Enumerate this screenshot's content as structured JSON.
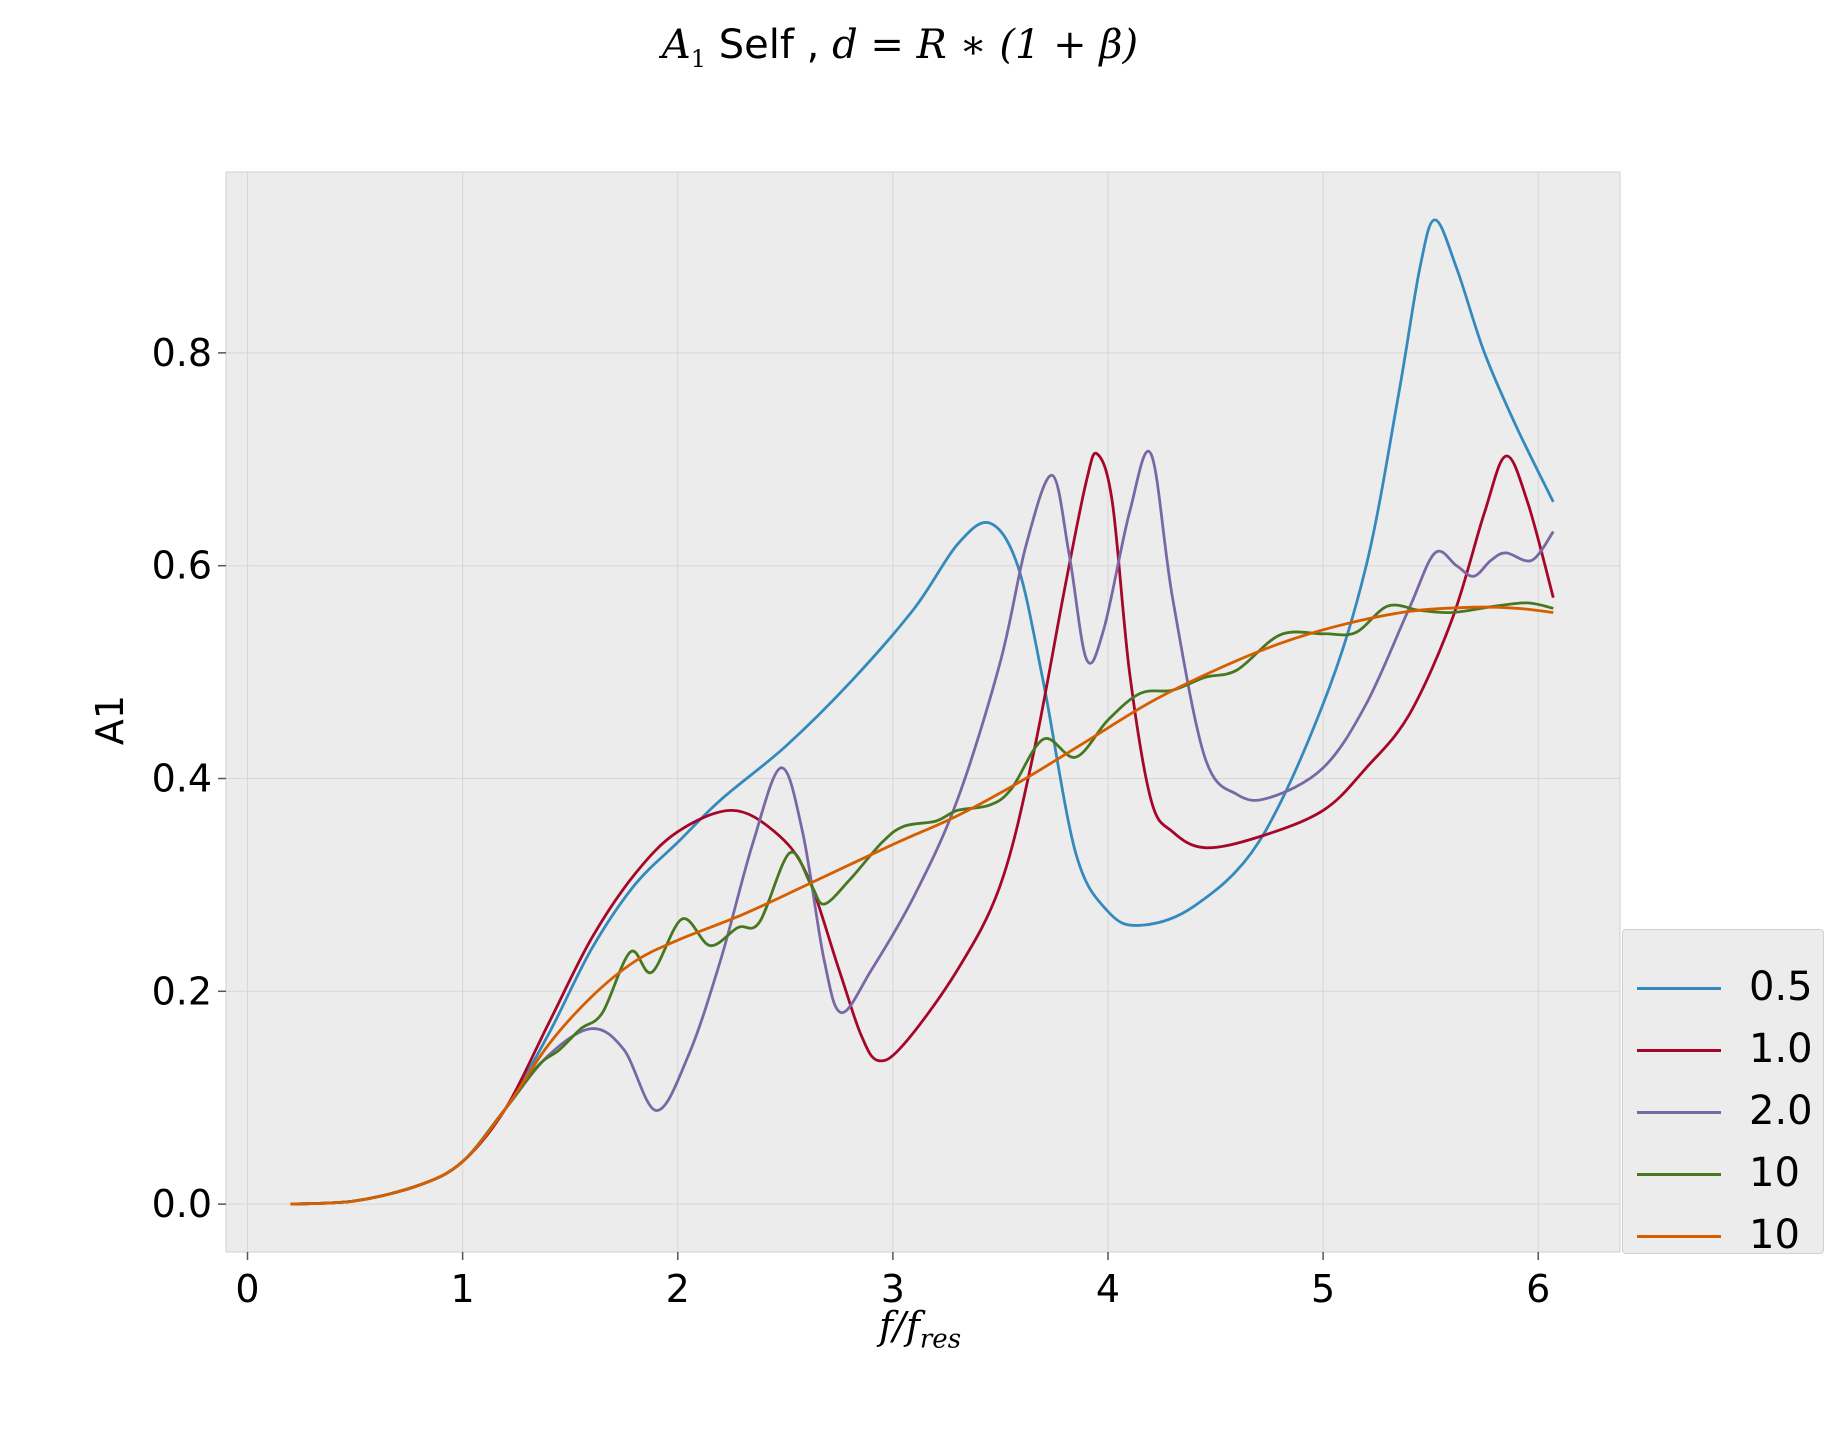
{
  "title": {
    "var_main": "A",
    "var_sub": "1",
    "word": "Self",
    "sep": " , ",
    "formula": "d = R ∗ (1 + β)"
  },
  "xlabel": {
    "main": "f/f",
    "sub": "res"
  },
  "ylabel": "A1",
  "legend": {
    "placement": "lower-right",
    "items": [
      "0.5",
      "1.0",
      "2.0",
      "10",
      "10"
    ]
  },
  "colors": {
    "background": "#ececec",
    "grid": "#d6d6d6"
  },
  "chart_data": {
    "type": "line",
    "title": "A1 Self , d = R * (1 + β)",
    "xlabel": "f/f_res",
    "ylabel": "A1",
    "xlim": [
      -0.1,
      6.38
    ],
    "ylim": [
      -0.045,
      0.97
    ],
    "xticks": [
      0,
      1,
      2,
      3,
      4,
      5,
      6
    ],
    "yticks": [
      0.0,
      0.2,
      0.4,
      0.6,
      0.8
    ],
    "xtick_labels": [
      "0",
      "1",
      "2",
      "3",
      "4",
      "5",
      "6"
    ],
    "ytick_labels": [
      "0.0",
      "0.2",
      "0.4",
      "0.6",
      "0.8"
    ],
    "grid": true,
    "legend_position": "lower-right",
    "series": [
      {
        "name": "0.5",
        "color": "#348abd",
        "points": [
          [
            0.2,
            0.0
          ],
          [
            0.5,
            0.003
          ],
          [
            0.8,
            0.018
          ],
          [
            1.0,
            0.04
          ],
          [
            1.2,
            0.09
          ],
          [
            1.4,
            0.16
          ],
          [
            1.6,
            0.24
          ],
          [
            1.8,
            0.3
          ],
          [
            2.0,
            0.34
          ],
          [
            2.2,
            0.38
          ],
          [
            2.5,
            0.43
          ],
          [
            2.8,
            0.49
          ],
          [
            3.1,
            0.56
          ],
          [
            3.3,
            0.62
          ],
          [
            3.45,
            0.64
          ],
          [
            3.58,
            0.6
          ],
          [
            3.7,
            0.49
          ],
          [
            3.85,
            0.33
          ],
          [
            4.0,
            0.275
          ],
          [
            4.15,
            0.262
          ],
          [
            4.4,
            0.28
          ],
          [
            4.7,
            0.34
          ],
          [
            5.0,
            0.47
          ],
          [
            5.2,
            0.6
          ],
          [
            5.35,
            0.76
          ],
          [
            5.45,
            0.88
          ],
          [
            5.52,
            0.925
          ],
          [
            5.62,
            0.88
          ],
          [
            5.75,
            0.8
          ],
          [
            5.9,
            0.73
          ],
          [
            6.07,
            0.66
          ]
        ]
      },
      {
        "name": "1.0",
        "color": "#a60628",
        "points": [
          [
            0.2,
            0.0
          ],
          [
            0.5,
            0.003
          ],
          [
            0.8,
            0.018
          ],
          [
            1.0,
            0.04
          ],
          [
            1.2,
            0.09
          ],
          [
            1.4,
            0.17
          ],
          [
            1.6,
            0.25
          ],
          [
            1.8,
            0.31
          ],
          [
            2.0,
            0.35
          ],
          [
            2.25,
            0.37
          ],
          [
            2.45,
            0.35
          ],
          [
            2.6,
            0.31
          ],
          [
            2.75,
            0.22
          ],
          [
            2.85,
            0.16
          ],
          [
            2.93,
            0.135
          ],
          [
            3.05,
            0.15
          ],
          [
            3.3,
            0.22
          ],
          [
            3.5,
            0.3
          ],
          [
            3.65,
            0.42
          ],
          [
            3.8,
            0.58
          ],
          [
            3.9,
            0.68
          ],
          [
            3.95,
            0.705
          ],
          [
            4.02,
            0.66
          ],
          [
            4.1,
            0.5
          ],
          [
            4.2,
            0.38
          ],
          [
            4.3,
            0.35
          ],
          [
            4.45,
            0.335
          ],
          [
            4.7,
            0.345
          ],
          [
            5.0,
            0.37
          ],
          [
            5.2,
            0.41
          ],
          [
            5.4,
            0.46
          ],
          [
            5.6,
            0.55
          ],
          [
            5.75,
            0.65
          ],
          [
            5.85,
            0.703
          ],
          [
            5.95,
            0.66
          ],
          [
            6.07,
            0.57
          ]
        ]
      },
      {
        "name": "2.0",
        "color": "#7a68a6",
        "points": [
          [
            0.2,
            0.0
          ],
          [
            0.5,
            0.003
          ],
          [
            0.8,
            0.018
          ],
          [
            1.0,
            0.04
          ],
          [
            1.2,
            0.09
          ],
          [
            1.4,
            0.14
          ],
          [
            1.6,
            0.165
          ],
          [
            1.75,
            0.145
          ],
          [
            1.9,
            0.088
          ],
          [
            2.05,
            0.14
          ],
          [
            2.2,
            0.23
          ],
          [
            2.35,
            0.34
          ],
          [
            2.48,
            0.41
          ],
          [
            2.58,
            0.35
          ],
          [
            2.68,
            0.23
          ],
          [
            2.76,
            0.18
          ],
          [
            2.9,
            0.22
          ],
          [
            3.1,
            0.29
          ],
          [
            3.3,
            0.38
          ],
          [
            3.5,
            0.51
          ],
          [
            3.62,
            0.62
          ],
          [
            3.74,
            0.685
          ],
          [
            3.82,
            0.61
          ],
          [
            3.9,
            0.512
          ],
          [
            3.98,
            0.54
          ],
          [
            4.1,
            0.65
          ],
          [
            4.2,
            0.705
          ],
          [
            4.3,
            0.57
          ],
          [
            4.45,
            0.42
          ],
          [
            4.6,
            0.385
          ],
          [
            4.75,
            0.382
          ],
          [
            5.0,
            0.41
          ],
          [
            5.2,
            0.47
          ],
          [
            5.4,
            0.56
          ],
          [
            5.52,
            0.612
          ],
          [
            5.62,
            0.6
          ],
          [
            5.7,
            0.59
          ],
          [
            5.78,
            0.605
          ],
          [
            5.85,
            0.612
          ],
          [
            5.97,
            0.605
          ],
          [
            6.07,
            0.632
          ]
        ]
      },
      {
        "name": "10",
        "color": "#467821",
        "points": [
          [
            0.2,
            0.0
          ],
          [
            0.5,
            0.003
          ],
          [
            0.8,
            0.018
          ],
          [
            1.0,
            0.04
          ],
          [
            1.2,
            0.09
          ],
          [
            1.35,
            0.13
          ],
          [
            1.45,
            0.145
          ],
          [
            1.55,
            0.165
          ],
          [
            1.65,
            0.18
          ],
          [
            1.78,
            0.237
          ],
          [
            1.88,
            0.218
          ],
          [
            2.02,
            0.268
          ],
          [
            2.15,
            0.243
          ],
          [
            2.28,
            0.26
          ],
          [
            2.38,
            0.265
          ],
          [
            2.52,
            0.33
          ],
          [
            2.62,
            0.3
          ],
          [
            2.68,
            0.282
          ],
          [
            2.8,
            0.305
          ],
          [
            2.95,
            0.34
          ],
          [
            3.05,
            0.355
          ],
          [
            3.2,
            0.36
          ],
          [
            3.3,
            0.37
          ],
          [
            3.45,
            0.375
          ],
          [
            3.55,
            0.39
          ],
          [
            3.7,
            0.437
          ],
          [
            3.85,
            0.42
          ],
          [
            4.0,
            0.455
          ],
          [
            4.15,
            0.48
          ],
          [
            4.3,
            0.483
          ],
          [
            4.45,
            0.495
          ],
          [
            4.6,
            0.502
          ],
          [
            4.8,
            0.535
          ],
          [
            5.0,
            0.536
          ],
          [
            5.15,
            0.537
          ],
          [
            5.3,
            0.562
          ],
          [
            5.45,
            0.558
          ],
          [
            5.6,
            0.556
          ],
          [
            5.8,
            0.562
          ],
          [
            5.95,
            0.565
          ],
          [
            6.07,
            0.56
          ]
        ]
      },
      {
        "name": "10",
        "color": "#d55e00",
        "points": [
          [
            0.2,
            0.0
          ],
          [
            0.5,
            0.003
          ],
          [
            0.8,
            0.018
          ],
          [
            1.0,
            0.04
          ],
          [
            1.2,
            0.09
          ],
          [
            1.4,
            0.15
          ],
          [
            1.6,
            0.195
          ],
          [
            1.8,
            0.228
          ],
          [
            2.0,
            0.248
          ],
          [
            2.3,
            0.272
          ],
          [
            2.6,
            0.3
          ],
          [
            3.0,
            0.338
          ],
          [
            3.3,
            0.365
          ],
          [
            3.6,
            0.398
          ],
          [
            3.9,
            0.435
          ],
          [
            4.2,
            0.472
          ],
          [
            4.5,
            0.502
          ],
          [
            4.8,
            0.527
          ],
          [
            5.1,
            0.545
          ],
          [
            5.4,
            0.557
          ],
          [
            5.7,
            0.561
          ],
          [
            5.9,
            0.56
          ],
          [
            6.07,
            0.556
          ]
        ]
      }
    ]
  }
}
